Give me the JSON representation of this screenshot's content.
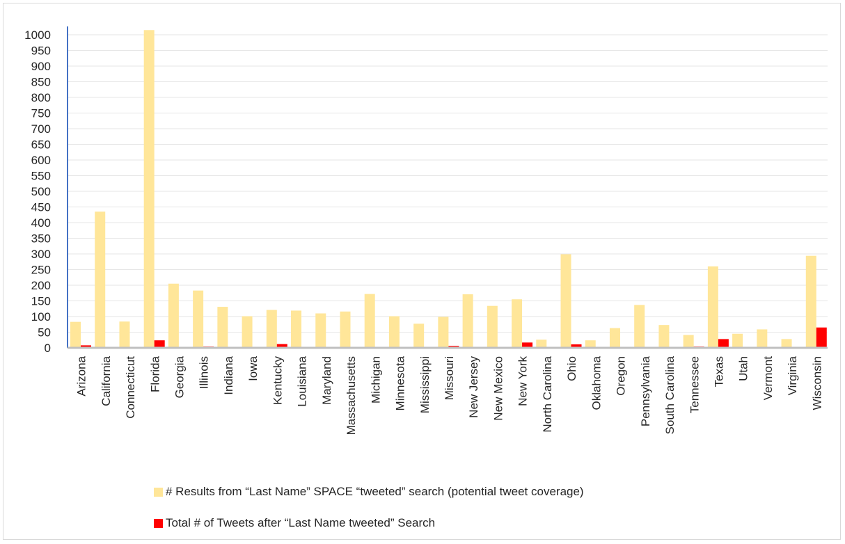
{
  "chart_data": {
    "type": "bar",
    "categories": [
      "Arizona",
      "California",
      "Connecticut",
      "Florida",
      "Georgia",
      "Illinois",
      "Indiana",
      "Iowa",
      "Kentucky",
      "Louisiana",
      "Maryland",
      "Massachusetts",
      "Michigan",
      "Minnesota",
      "Mississippi",
      "Missouri",
      "New Jersey",
      "New Mexico",
      "New York",
      "North Carolina",
      "Ohio",
      "Oklahoma",
      "Oregon",
      "Pennsylvania",
      "South Carolina",
      "Tennessee",
      "Texas",
      "Utah",
      "Vermont",
      "Virginia",
      "Wisconsin"
    ],
    "series": [
      {
        "name": "# Results from “Last Name” SPACE “tweeted” search (potential tweet coverage)",
        "color": "#FFE699",
        "values": [
          83,
          435,
          84,
          1015,
          205,
          183,
          131,
          101,
          121,
          119,
          110,
          116,
          172,
          101,
          77,
          99,
          171,
          134,
          155,
          26,
          299,
          24,
          63,
          137,
          73,
          41,
          260,
          45,
          59,
          28,
          294
        ]
      },
      {
        "name": "Total # of Tweets after “Last Name tweeted” Search",
        "color": "#FF0000",
        "values": [
          8,
          0,
          0,
          24,
          0,
          4,
          3,
          0,
          12,
          3,
          0,
          1,
          1,
          0,
          0,
          6,
          0,
          0,
          17,
          2,
          11,
          3,
          1,
          0,
          0,
          4,
          28,
          0,
          0,
          1,
          65
        ]
      }
    ],
    "y_ticks": [
      "0",
      "50",
      "100",
      "150",
      "200",
      "250",
      "300",
      "350",
      "400",
      "450",
      "500",
      "550",
      "600",
      "650",
      "700",
      "750",
      "800",
      "850",
      "900",
      "950",
      "1000"
    ],
    "ylim": [
      0,
      1000
    ],
    "grid": true,
    "legend_position": "bottom"
  }
}
